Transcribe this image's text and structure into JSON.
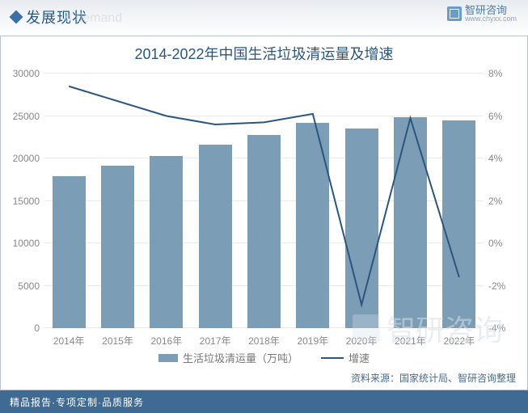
{
  "header": {
    "section_title": "发展现状",
    "ghost": "d demand",
    "brand_name": "智研咨询",
    "brand_url": "www.chyxx.com"
  },
  "chart": {
    "type": "bar+line",
    "title": "2014-2022年中国生活垃圾清运量及增速",
    "categories": [
      "2014年",
      "2015年",
      "2016年",
      "2017年",
      "2018年",
      "2019年",
      "2020年",
      "2021年",
      "2022年"
    ],
    "bar_series": {
      "name": "生活垃圾清运量（万吨）",
      "values": [
        17900,
        19100,
        20300,
        21600,
        22800,
        24200,
        23500,
        24900,
        24500
      ],
      "color": "#7b9db5",
      "bar_width": 0.68
    },
    "line_series": {
      "name": "增速",
      "values": [
        7.4,
        6.7,
        6.0,
        5.6,
        5.7,
        6.1,
        -2.9,
        5.9,
        -1.6
      ],
      "color": "#2b567f",
      "line_width": 2
    },
    "y_left": {
      "min": 0,
      "max": 30000,
      "step": 5000,
      "ticks": [
        0,
        5000,
        10000,
        15000,
        20000,
        25000,
        30000
      ]
    },
    "y_right": {
      "min": -4,
      "max": 8,
      "step": 2,
      "ticks": [
        -4,
        -2,
        0,
        2,
        4,
        6,
        8
      ],
      "tick_labels": [
        "-4%",
        "-2%",
        "0%",
        "2%",
        "4%",
        "6%",
        "8%"
      ]
    },
    "grid_color": "#e8eaed",
    "background_color": "#ffffff",
    "tick_fontsize": 12,
    "tick_color": "#888888",
    "title_fontsize": 18,
    "title_color": "#2b567f"
  },
  "legend": {
    "bar_label": "生活垃圾清运量（万吨）",
    "line_label": "增速"
  },
  "source": "资料来源：国家统计局、智研咨询整理",
  "footer": "精品报告·专项定制·品质服务",
  "watermark": "智研咨询"
}
